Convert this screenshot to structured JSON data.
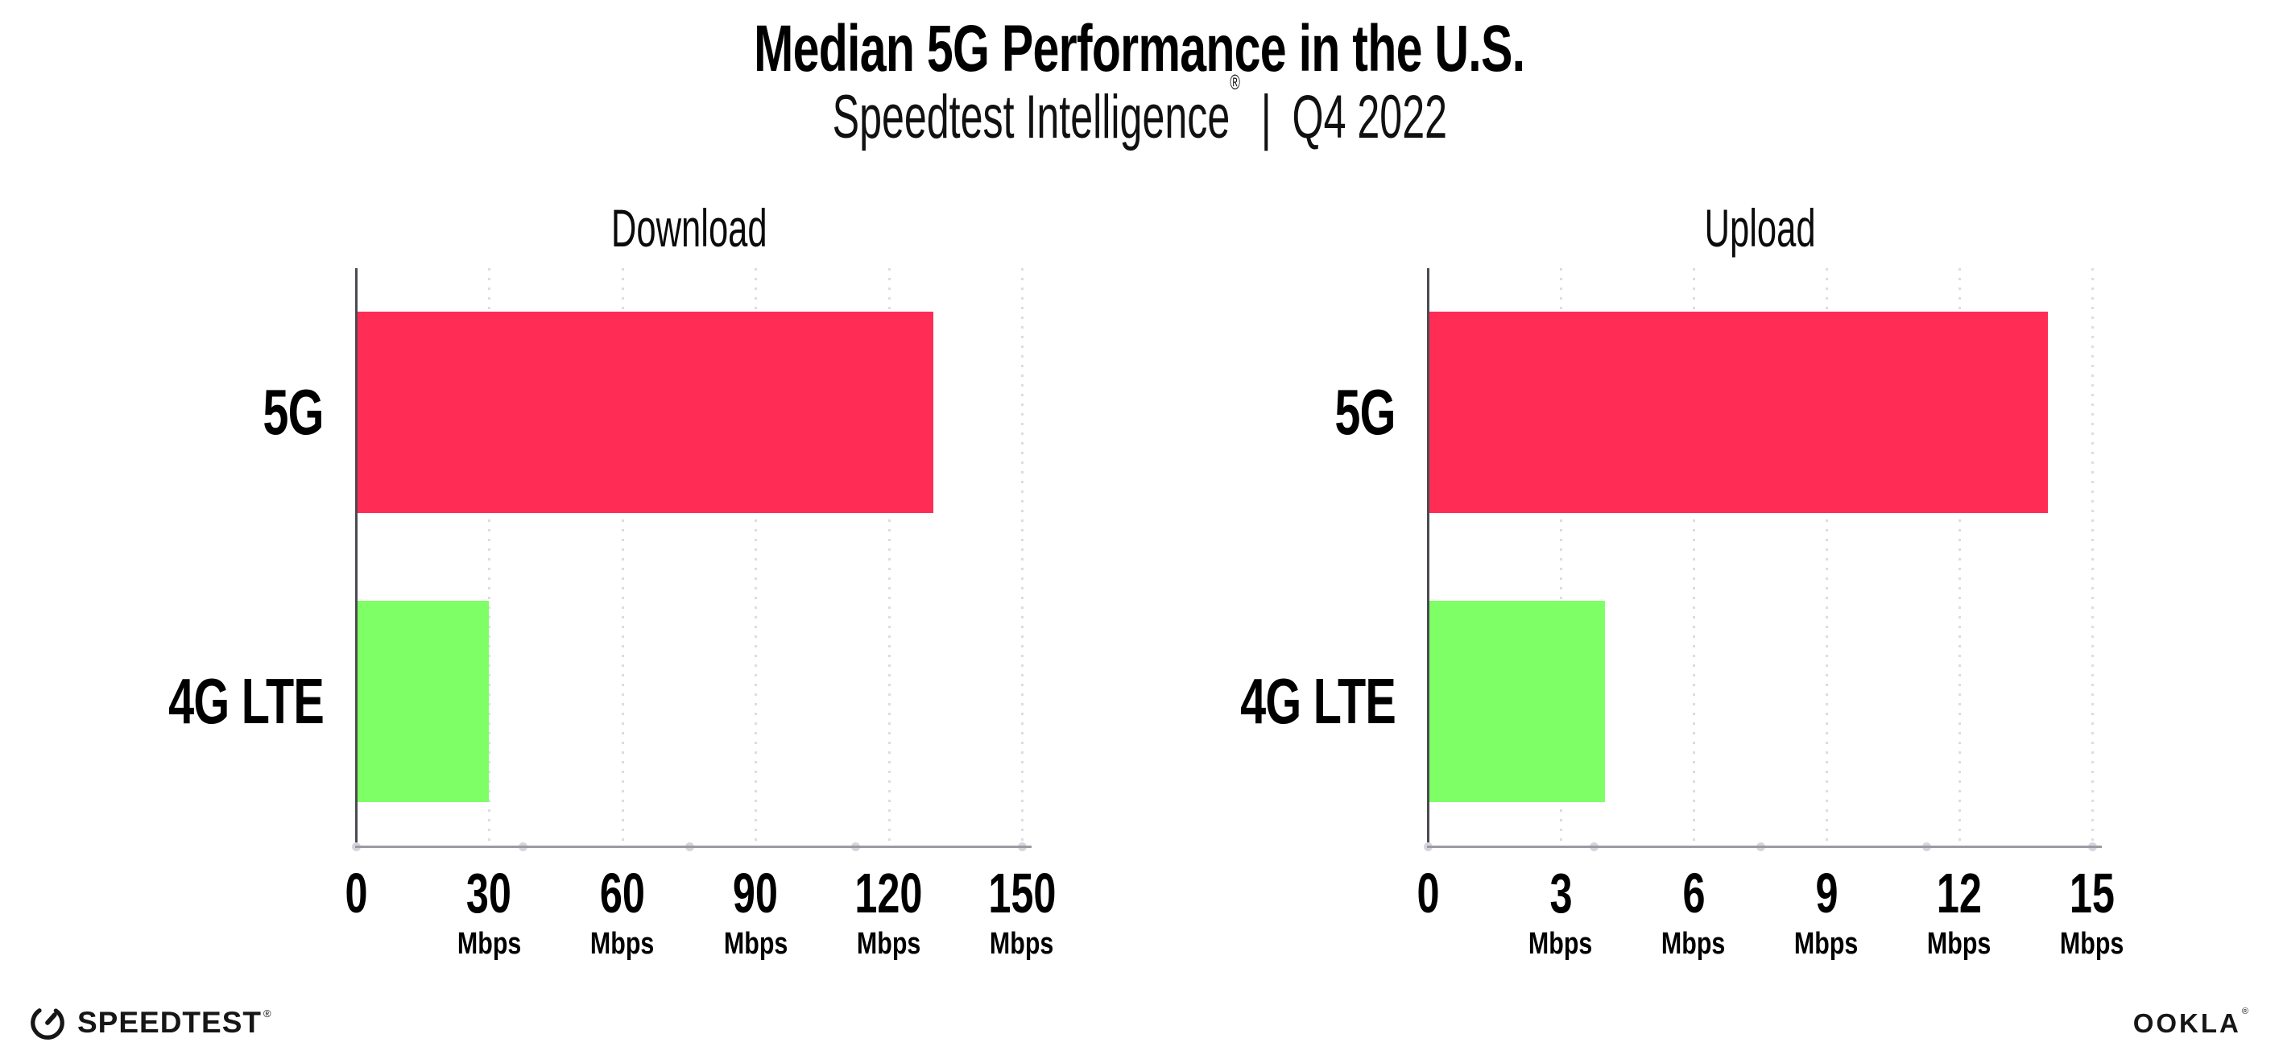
{
  "header": {
    "title": "Median 5G Performance in the U.S.",
    "subtitle_brand": "Speedtest Intelligence",
    "subtitle_reg": "®",
    "subtitle_separator": "|",
    "subtitle_period": "Q4 2022"
  },
  "chart_data": [
    {
      "type": "bar",
      "orientation": "horizontal",
      "title": "Download",
      "categories": [
        "5G",
        "4G LTE"
      ],
      "values": [
        130,
        30
      ],
      "unit": "Mbps",
      "xlim": [
        0,
        150
      ],
      "xticks": [
        0,
        30,
        60,
        90,
        120,
        150
      ],
      "bar_colors": [
        "#FF2D55",
        "#7FFF66"
      ],
      "grid": "dotted-vertical",
      "legend": "none"
    },
    {
      "type": "bar",
      "orientation": "horizontal",
      "title": "Upload",
      "categories": [
        "5G",
        "4G LTE"
      ],
      "values": [
        14,
        4
      ],
      "unit": "Mbps",
      "xlim": [
        0,
        15
      ],
      "xticks": [
        0,
        3,
        6,
        9,
        12,
        15
      ],
      "bar_colors": [
        "#FF2D55",
        "#7FFF66"
      ],
      "grid": "dotted-vertical",
      "legend": "none"
    }
  ],
  "footer": {
    "speedtest_label": "SPEEDTEST",
    "speedtest_reg": "®",
    "ookla_label": "OOKLA",
    "ookla_reg": "®"
  },
  "colors": {
    "bar_5g": "#FF2D55",
    "bar_4g_lte": "#7FFF66",
    "gridline": "#DCDCE6",
    "axis_line": "#9B9BA3",
    "y_axis": "#4B4B52",
    "text": "#000000",
    "background": "#FFFFFF"
  }
}
